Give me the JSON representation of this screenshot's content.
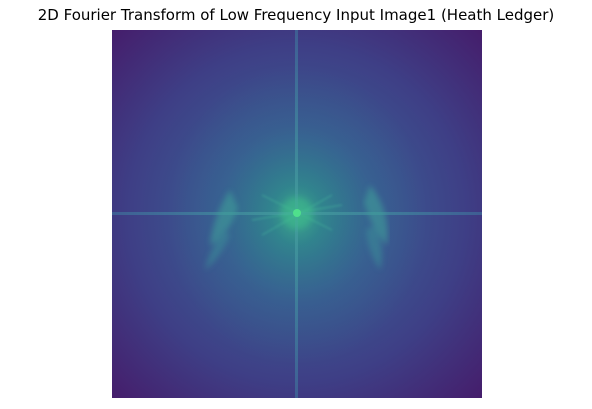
{
  "figure": {
    "title": "2D Fourier Transform of Low Frequency Input Image1 (Heath Ledger)"
  },
  "image": {
    "kind": "fft-magnitude-spectrum",
    "colormap": "viridis",
    "axes_visible": false,
    "colors": {
      "background_dark": "#3f1f6e",
      "mid": "#3c4a8c",
      "glow": "#2f7f8f",
      "center": "#2fd08a"
    }
  }
}
